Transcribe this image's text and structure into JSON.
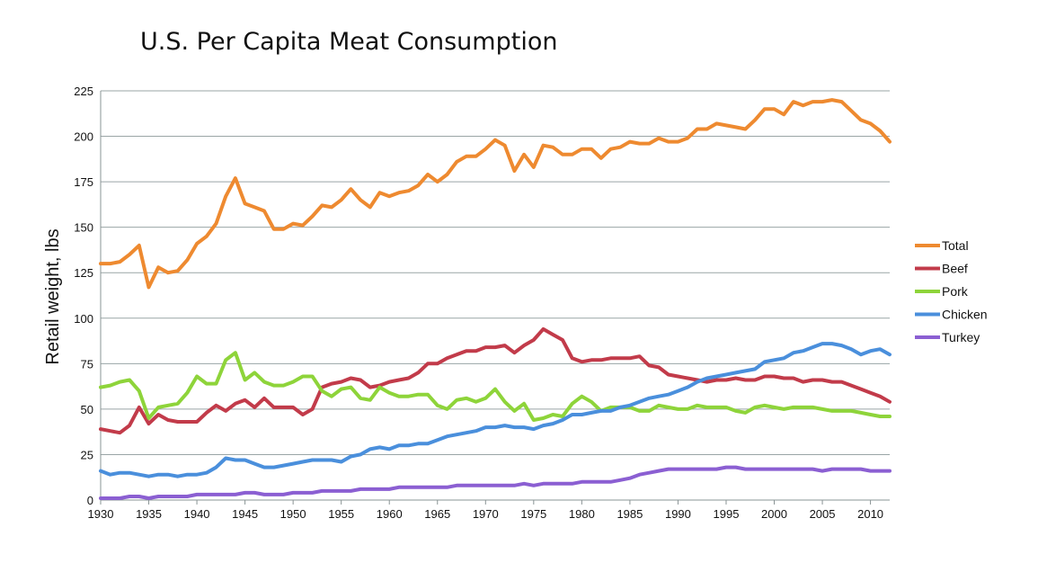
{
  "chart_data": {
    "type": "line",
    "title": "U.S. Per Capita Meat Consumption",
    "xlabel": "",
    "ylabel": "Retail weight, lbs",
    "xlim": [
      1930,
      2012
    ],
    "ylim": [
      0,
      225
    ],
    "grid": true,
    "legend_position": "right",
    "y_ticks": [
      "0",
      "25",
      "50",
      "75",
      "100",
      "125",
      "150",
      "175",
      "200",
      "225"
    ],
    "x_ticks": [
      "1930",
      "1935",
      "1940",
      "1945",
      "1950",
      "1955",
      "1960",
      "1965",
      "1970",
      "1975",
      "1980",
      "1985",
      "1990",
      "1995",
      "2000",
      "2005",
      "2010"
    ],
    "x": [
      1930,
      1931,
      1932,
      1933,
      1934,
      1935,
      1936,
      1937,
      1938,
      1939,
      1940,
      1941,
      1942,
      1943,
      1944,
      1945,
      1946,
      1947,
      1948,
      1949,
      1950,
      1951,
      1952,
      1953,
      1954,
      1955,
      1956,
      1957,
      1958,
      1959,
      1960,
      1961,
      1962,
      1963,
      1964,
      1965,
      1966,
      1967,
      1968,
      1969,
      1970,
      1971,
      1972,
      1973,
      1974,
      1975,
      1976,
      1977,
      1978,
      1979,
      1980,
      1981,
      1982,
      1983,
      1984,
      1985,
      1986,
      1987,
      1988,
      1989,
      1990,
      1991,
      1992,
      1993,
      1994,
      1995,
      1996,
      1997,
      1998,
      1999,
      2000,
      2001,
      2002,
      2003,
      2004,
      2005,
      2006,
      2007,
      2008,
      2009,
      2010,
      2011,
      2012
    ],
    "series": [
      {
        "name": "Total",
        "color": "#ee8a30",
        "values": [
          130,
          130,
          131,
          135,
          140,
          117,
          128,
          125,
          126,
          132,
          141,
          145,
          152,
          167,
          177,
          163,
          161,
          159,
          149,
          149,
          152,
          151,
          156,
          162,
          161,
          165,
          171,
          165,
          161,
          169,
          167,
          169,
          170,
          173,
          179,
          175,
          179,
          186,
          189,
          189,
          193,
          198,
          195,
          181,
          190,
          183,
          195,
          194,
          190,
          190,
          193,
          193,
          188,
          193,
          194,
          197,
          196,
          196,
          199,
          197,
          197,
          199,
          204,
          204,
          207,
          206,
          205,
          204,
          209,
          215,
          215,
          212,
          219,
          217,
          219,
          219,
          220,
          219,
          214,
          209,
          207,
          203,
          197
        ]
      },
      {
        "name": "Beef",
        "color": "#c23b4a",
        "values": [
          39,
          38,
          37,
          41,
          51,
          42,
          47,
          44,
          43,
          43,
          43,
          48,
          52,
          49,
          53,
          55,
          51,
          56,
          51,
          51,
          51,
          47,
          50,
          62,
          64,
          65,
          67,
          66,
          62,
          63,
          65,
          66,
          67,
          70,
          75,
          75,
          78,
          80,
          82,
          82,
          84,
          84,
          85,
          81,
          85,
          88,
          94,
          91,
          88,
          78,
          76,
          77,
          77,
          78,
          78,
          78,
          79,
          74,
          73,
          69,
          68,
          67,
          66,
          65,
          66,
          66,
          67,
          66,
          66,
          68,
          68,
          67,
          67,
          65,
          66,
          66,
          65,
          65,
          63,
          61,
          59,
          57,
          54
        ]
      },
      {
        "name": "Pork",
        "color": "#8ed43a",
        "values": [
          62,
          63,
          65,
          66,
          60,
          45,
          51,
          52,
          53,
          59,
          68,
          64,
          64,
          77,
          81,
          66,
          70,
          65,
          63,
          63,
          65,
          68,
          68,
          60,
          57,
          61,
          62,
          56,
          55,
          62,
          59,
          57,
          57,
          58,
          58,
          52,
          50,
          55,
          56,
          54,
          56,
          61,
          54,
          49,
          53,
          44,
          45,
          47,
          46,
          53,
          57,
          54,
          49,
          51,
          51,
          51,
          49,
          49,
          52,
          51,
          50,
          50,
          52,
          51,
          51,
          51,
          49,
          48,
          51,
          52,
          51,
          50,
          51,
          51,
          51,
          50,
          49,
          49,
          49,
          48,
          47,
          46,
          46
        ]
      },
      {
        "name": "Chicken",
        "color": "#4a8fdc",
        "values": [
          16,
          14,
          15,
          15,
          14,
          13,
          14,
          14,
          13,
          14,
          14,
          15,
          18,
          23,
          22,
          22,
          20,
          18,
          18,
          19,
          20,
          21,
          22,
          22,
          22,
          21,
          24,
          25,
          28,
          29,
          28,
          30,
          30,
          31,
          31,
          33,
          35,
          36,
          37,
          38,
          40,
          40,
          41,
          40,
          40,
          39,
          41,
          42,
          44,
          47,
          47,
          48,
          49,
          49,
          51,
          52,
          54,
          56,
          57,
          58,
          60,
          62,
          65,
          67,
          68,
          69,
          70,
          71,
          72,
          76,
          77,
          78,
          81,
          82,
          84,
          86,
          86,
          85,
          83,
          80,
          82,
          83,
          80
        ]
      },
      {
        "name": "Turkey",
        "color": "#8b5fd2",
        "values": [
          1,
          1,
          1,
          2,
          2,
          1,
          2,
          2,
          2,
          2,
          3,
          3,
          3,
          3,
          3,
          4,
          4,
          3,
          3,
          3,
          4,
          4,
          4,
          5,
          5,
          5,
          5,
          6,
          6,
          6,
          6,
          7,
          7,
          7,
          7,
          7,
          7,
          8,
          8,
          8,
          8,
          8,
          8,
          8,
          9,
          8,
          9,
          9,
          9,
          9,
          10,
          10,
          10,
          10,
          11,
          12,
          14,
          15,
          16,
          17,
          17,
          17,
          17,
          17,
          17,
          18,
          18,
          17,
          17,
          17,
          17,
          17,
          17,
          17,
          17,
          16,
          17,
          17,
          17,
          17,
          16,
          16,
          16
        ]
      }
    ]
  }
}
